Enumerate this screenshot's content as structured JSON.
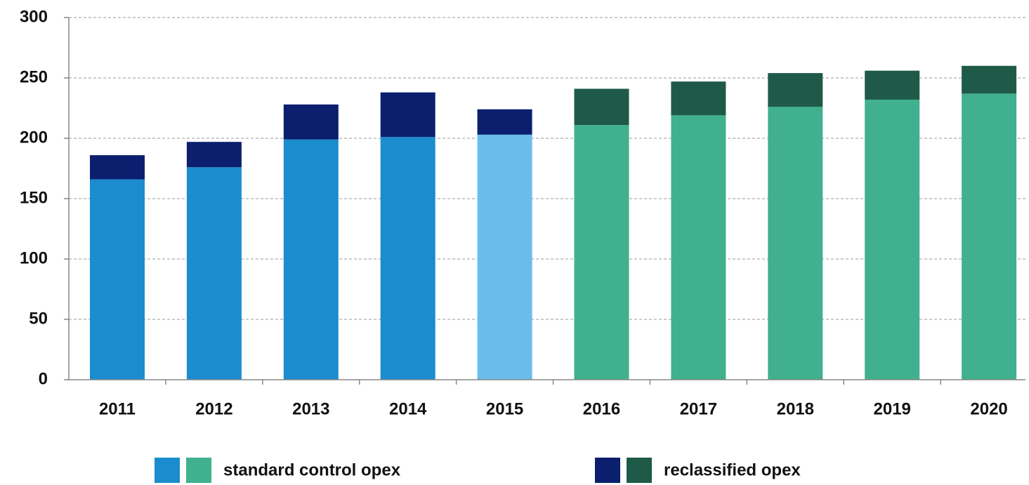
{
  "chart_data": {
    "type": "stacked_bar",
    "categories": [
      "2011",
      "2012",
      "2013",
      "2014",
      "2015",
      "2016",
      "2017",
      "2018",
      "2019",
      "2020"
    ],
    "series": [
      {
        "name": "standard control opex",
        "legend_colors": [
          "#1b8ccd",
          "#40b08e"
        ],
        "colors": [
          "#1b8ccd",
          "#1b8ccd",
          "#1b8ccd",
          "#1b8ccd",
          "#6abdea",
          "#40b08e",
          "#40b08e",
          "#40b08e",
          "#40b08e",
          "#40b08e"
        ],
        "values": [
          166,
          176,
          199,
          201,
          203,
          211,
          219,
          226,
          232,
          237
        ]
      },
      {
        "name": "reclassified opex",
        "legend_colors": [
          "#0b1f6e",
          "#1f5a48"
        ],
        "colors": [
          "#0b1f6e",
          "#0b1f6e",
          "#0b1f6e",
          "#0b1f6e",
          "#0b1f6e",
          "#1f5a48",
          "#1f5a48",
          "#1f5a48",
          "#1f5a48",
          "#1f5a48"
        ],
        "values": [
          20,
          21,
          29,
          37,
          21,
          30,
          28,
          28,
          24,
          23
        ]
      }
    ],
    "ylim": [
      0,
      300
    ],
    "yticks": [
      0,
      50,
      100,
      150,
      200,
      250,
      300
    ],
    "grid": true
  }
}
